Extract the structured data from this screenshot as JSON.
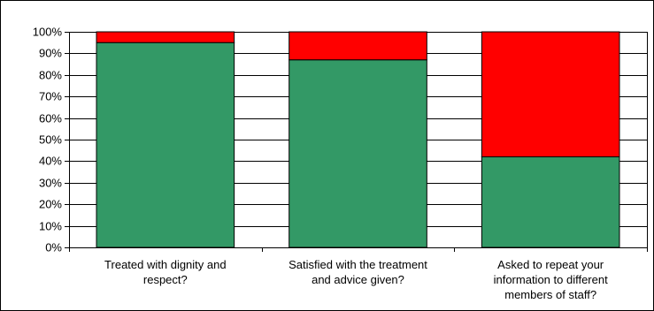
{
  "chart_data": {
    "type": "bar",
    "stacked": true,
    "percent": true,
    "categories": [
      [
        "Treated with dignity and",
        "respect?"
      ],
      [
        "Satisfied with the treatment",
        "and advice given?"
      ],
      [
        "Asked to repeat your",
        "information to different",
        "members of staff?"
      ]
    ],
    "series": [
      {
        "color": "#339966",
        "values": [
          95,
          87,
          42
        ]
      },
      {
        "color": "#ff0000",
        "values": [
          5,
          13,
          58
        ]
      }
    ],
    "ylim": [
      0,
      100
    ],
    "yticks": [
      "0%",
      "10%",
      "20%",
      "30%",
      "40%",
      "50%",
      "60%",
      "70%",
      "80%",
      "90%",
      "100%"
    ],
    "grid": true,
    "legend": "none"
  }
}
